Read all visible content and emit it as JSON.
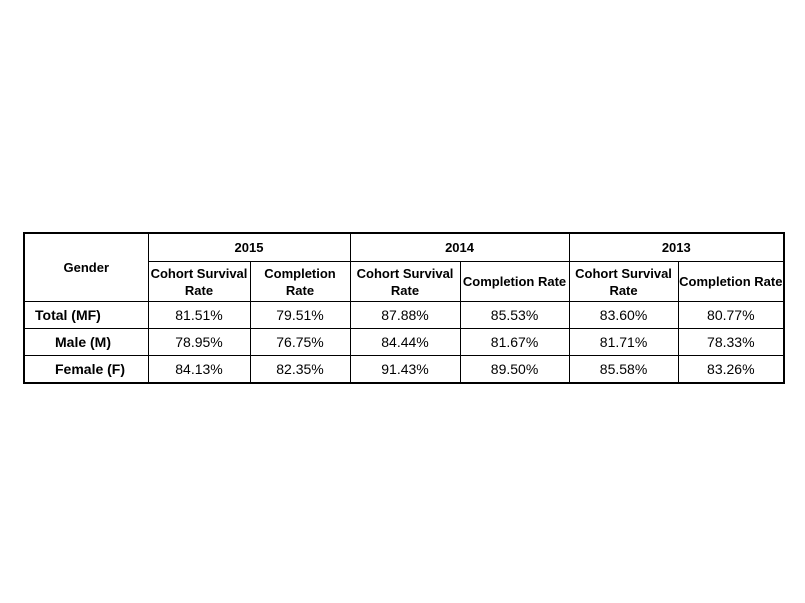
{
  "table": {
    "gender_header": "Gender",
    "years": [
      "2015",
      "2014",
      "2013"
    ],
    "subheaders": {
      "cohort": "Cohort Survival Rate",
      "completion": "Completion Rate"
    },
    "rows": [
      {
        "label": "Total (MF)",
        "values": [
          "81.51%",
          "79.51%",
          "87.88%",
          "85.53%",
          "83.60%",
          "80.77%"
        ]
      },
      {
        "label": "Male (M)",
        "values": [
          "78.95%",
          "76.75%",
          "84.44%",
          "81.67%",
          "81.71%",
          "78.33%"
        ]
      },
      {
        "label": "Female (F)",
        "values": [
          "84.13%",
          "82.35%",
          "91.43%",
          "89.50%",
          "85.58%",
          "83.26%"
        ]
      }
    ]
  }
}
